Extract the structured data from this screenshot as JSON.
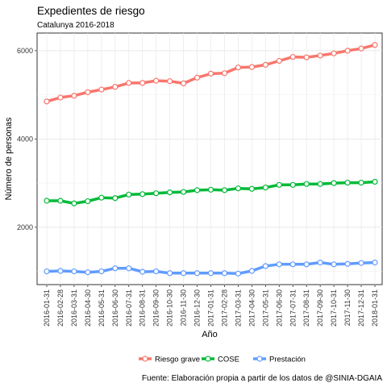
{
  "chart_data": {
    "type": "line",
    "title": "Expedientes de riesgo",
    "subtitle": "Catalunya 2016-2018",
    "xlabel": "Año",
    "ylabel": "Número de personas",
    "caption": "Fuente: Elaboración propia a partir de los datos de @SINIA-DGAIA",
    "ylim": [
      700,
      6400
    ],
    "yticks": [
      2000,
      4000,
      6000
    ],
    "grid": true,
    "legend_position": "bottom",
    "categories": [
      "2016-01-31",
      "2016-02-28",
      "2016-03-31",
      "2016-04-30",
      "2016-05-31",
      "2016-06-30",
      "2016-07-31",
      "2016-08-31",
      "2016-09-30",
      "2016-10-30",
      "2016-11-30",
      "2016-12-30",
      "2017-01-31",
      "2017-02-28",
      "2017-03-31",
      "2017-04-30",
      "2017-05-31",
      "2017-06-30",
      "2017-07-31",
      "2017-08-31",
      "2017-09-30",
      "2017-10-31",
      "2017-11-30",
      "2017-12-31",
      "2018-01-31"
    ],
    "series": [
      {
        "name": "Riesgo grave",
        "color": "#F8766D",
        "values": [
          4850,
          4940,
          4980,
          5060,
          5120,
          5180,
          5270,
          5270,
          5320,
          5310,
          5260,
          5390,
          5480,
          5490,
          5620,
          5630,
          5680,
          5770,
          5860,
          5850,
          5890,
          5940,
          6000,
          6050,
          6130
        ]
      },
      {
        "name": "COSE",
        "color": "#00BA38",
        "values": [
          2600,
          2600,
          2540,
          2590,
          2670,
          2660,
          2740,
          2750,
          2770,
          2790,
          2800,
          2840,
          2850,
          2840,
          2880,
          2870,
          2900,
          2960,
          2960,
          2980,
          2980,
          3000,
          3010,
          3010,
          3030
        ]
      },
      {
        "name": "Prestación",
        "color": "#619CFF",
        "values": [
          1000,
          1010,
          1000,
          980,
          1000,
          1070,
          1070,
          990,
          1000,
          960,
          960,
          960,
          960,
          960,
          950,
          1010,
          1120,
          1160,
          1160,
          1160,
          1200,
          1160,
          1170,
          1190,
          1200
        ]
      }
    ]
  }
}
